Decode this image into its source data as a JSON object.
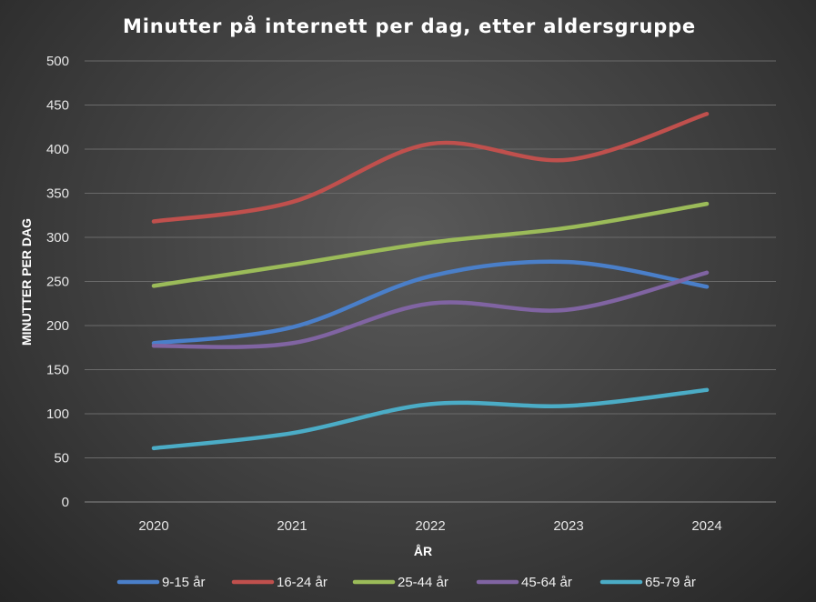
{
  "chart_data": {
    "type": "line",
    "title": "Minutter på internett per dag, etter aldersgruppe",
    "xlabel": "ÅR",
    "ylabel": "MINUTTER PER DAG",
    "categories": [
      "2020",
      "2021",
      "2022",
      "2023",
      "2024"
    ],
    "ylim": [
      0,
      500
    ],
    "yticks": [
      0,
      50,
      100,
      150,
      200,
      250,
      300,
      350,
      400,
      450,
      500
    ],
    "grid": true,
    "smooth": true,
    "legend_position": "bottom",
    "series": [
      {
        "name": "9-15 år",
        "color": "#4a7fc9",
        "values": [
          180,
          198,
          256,
          272,
          244
        ]
      },
      {
        "name": "16-24 år",
        "color": "#c0504d",
        "values": [
          318,
          340,
          406,
          388,
          440
        ]
      },
      {
        "name": "25-44 år",
        "color": "#9bbb59",
        "values": [
          245,
          269,
          294,
          311,
          338
        ]
      },
      {
        "name": "45-64 år",
        "color": "#8064a2",
        "values": [
          177,
          180,
          225,
          218,
          260
        ]
      },
      {
        "name": "65-79 år",
        "color": "#4bacc6",
        "values": [
          61,
          78,
          111,
          109,
          127
        ]
      }
    ]
  }
}
